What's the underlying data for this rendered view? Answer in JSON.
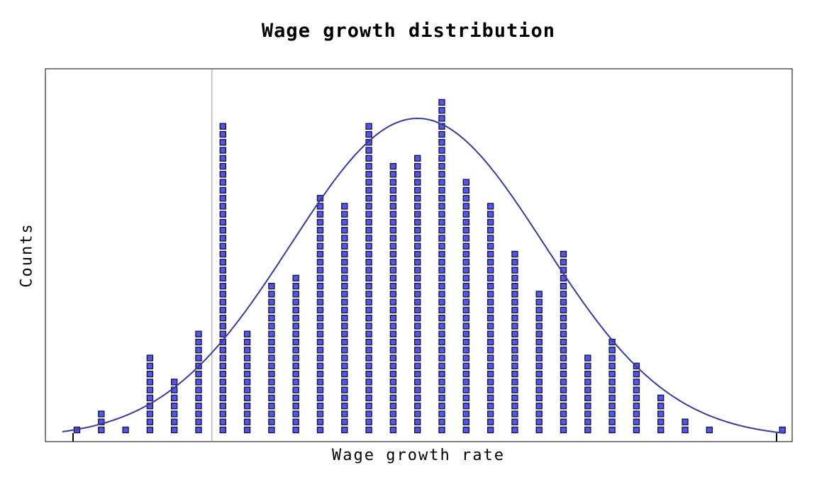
{
  "chart_data": {
    "type": "dot-histogram",
    "title": "Wage growth distribution",
    "xlabel": "Wage growth rate",
    "ylabel": "Counts",
    "x_tick_labels": [],
    "y_tick_labels": [],
    "bins": [
      1,
      2,
      3,
      4,
      5,
      6,
      7,
      8,
      9,
      10,
      11,
      12,
      13,
      14,
      15,
      16,
      17,
      18,
      19,
      20,
      21,
      22,
      23,
      24,
      25,
      26,
      27,
      28,
      29,
      30
    ],
    "counts": [
      1,
      3,
      1,
      10,
      7,
      13,
      39,
      13,
      19,
      20,
      30,
      29,
      39,
      34,
      35,
      42,
      32,
      29,
      23,
      18,
      23,
      10,
      12,
      9,
      5,
      2,
      1,
      0,
      0,
      1
    ],
    "reference_line_bin": 6.55,
    "fit_curve": {
      "type": "normal",
      "mean_bin": 15.0,
      "sd_bins": 5.2,
      "peak_count": 40.0
    },
    "colors": {
      "marker_fill": "#5555ee",
      "marker_edge": "#1a1a40",
      "curve": "#3a3a99",
      "reference_line": "#999999",
      "frame": "#000000"
    },
    "grid": false,
    "legend": "none"
  }
}
